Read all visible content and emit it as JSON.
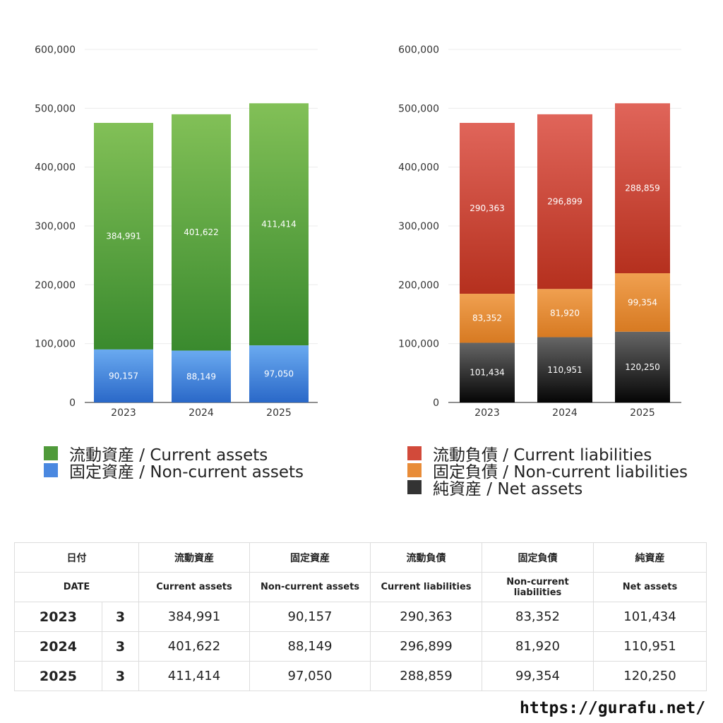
{
  "chart_data": [
    {
      "type": "bar",
      "stacked": true,
      "categories": [
        "2023",
        "2024",
        "2025"
      ],
      "ylim": [
        0,
        600000
      ],
      "yticks": [
        "0",
        "100,000",
        "200,000",
        "300,000",
        "400,000",
        "500,000",
        "600,000"
      ],
      "grid": true,
      "legend_position": "bottom",
      "series": [
        {
          "name": "固定資産 / Non-current assets",
          "values": [
            90157,
            88149,
            97050
          ],
          "labels": [
            "90,157",
            "88,149",
            "97,050"
          ],
          "color_top": "#6aaaf0",
          "color_bottom": "#2a68c8"
        },
        {
          "name": "流動資産 / Current assets",
          "values": [
            384991,
            401622,
            411414
          ],
          "labels": [
            "384,991",
            "401,622",
            "411,414"
          ],
          "color_top": "#82c057",
          "color_bottom": "#3a8a2e"
        }
      ]
    },
    {
      "type": "bar",
      "stacked": true,
      "categories": [
        "2023",
        "2024",
        "2025"
      ],
      "ylim": [
        0,
        600000
      ],
      "yticks": [
        "0",
        "100,000",
        "200,000",
        "300,000",
        "400,000",
        "500,000",
        "600,000"
      ],
      "grid": true,
      "legend_position": "bottom",
      "series": [
        {
          "name": "純資産 / Net assets",
          "values": [
            101434,
            110951,
            120250
          ],
          "labels": [
            "101,434",
            "110,951",
            "120,250"
          ],
          "color_top": "#666666",
          "color_bottom": "#050505"
        },
        {
          "name": "固定負債 / Non-current liabilities",
          "values": [
            83352,
            81920,
            99354
          ],
          "labels": [
            "83,352",
            "81,920",
            "99,354"
          ],
          "color_top": "#f0a050",
          "color_bottom": "#d77a22"
        },
        {
          "name": "流動負債 / Current liabilities",
          "values": [
            290363,
            296899,
            288859
          ],
          "labels": [
            "290,363",
            "296,899",
            "288,859"
          ],
          "color_top": "#e0655a",
          "color_bottom": "#b5301e"
        }
      ]
    }
  ],
  "legends": {
    "left": [
      {
        "label": "流動資産 / Current assets",
        "color": "#4f9a3a"
      },
      {
        "label": "固定資産 / Non-current assets",
        "color": "#4a88e0"
      }
    ],
    "right": [
      {
        "label": "流動負債 / Current liabilities",
        "color": "#d24a3a"
      },
      {
        "label": "固定負債 / Non-current liabilities",
        "color": "#e88c38"
      },
      {
        "label": "純資産 / Net assets",
        "color": "#333333"
      }
    ]
  },
  "table": {
    "header_jp": [
      "日付",
      "流動資産",
      "固定資産",
      "流動負債",
      "固定負債",
      "純資産"
    ],
    "header_en": [
      "DATE",
      "Current assets",
      "Non-current assets",
      "Current liabilities",
      "Non-current liabilities",
      "Net assets"
    ],
    "rows": [
      {
        "year": "2023",
        "month": "3",
        "values": [
          "384,991",
          "90,157",
          "290,363",
          "83,352",
          "101,434"
        ]
      },
      {
        "year": "2024",
        "month": "3",
        "values": [
          "401,622",
          "88,149",
          "296,899",
          "81,920",
          "110,951"
        ]
      },
      {
        "year": "2025",
        "month": "3",
        "values": [
          "411,414",
          "97,050",
          "288,859",
          "99,354",
          "120,250"
        ]
      }
    ]
  },
  "site": "https://gurafu.net/"
}
